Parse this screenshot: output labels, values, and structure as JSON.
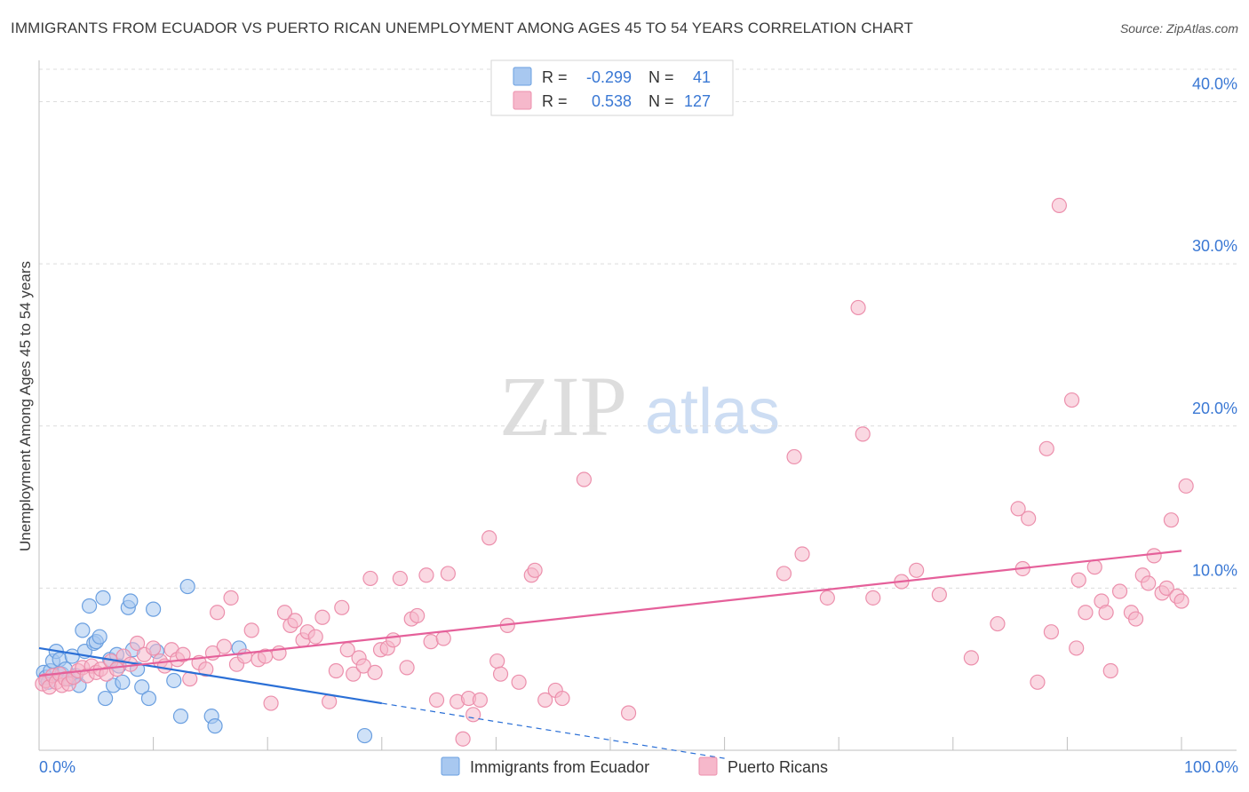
{
  "header": {
    "title": "IMMIGRANTS FROM ECUADOR VS PUERTO RICAN UNEMPLOYMENT AMONG AGES 45 TO 54 YEARS CORRELATION CHART",
    "source": "Source: ZipAtlas.com"
  },
  "watermark": {
    "zip": "ZIP",
    "atlas": "atlas"
  },
  "legend": {
    "series1": {
      "r_label": "R =",
      "r_value": "-0.299",
      "n_label": "N =",
      "n_value": "41"
    },
    "series2": {
      "r_label": "R =",
      "r_value": "0.538",
      "n_label": "N =",
      "n_value": "127"
    }
  },
  "colors": {
    "blue_fill": "#a8c8f0",
    "blue_stroke": "#6a9fe0",
    "blue_line": "#2a6fd6",
    "pink_fill": "#f6b8cb",
    "pink_stroke": "#ec8fac",
    "pink_line": "#e5609a",
    "value_text": "#3a78d4",
    "grid": "#dcdcdc"
  },
  "chart_data": {
    "type": "scatter",
    "title": "IMMIGRANTS FROM ECUADOR VS PUERTO RICAN UNEMPLOYMENT AMONG AGES 45 TO 54 YEARS CORRELATION CHART",
    "xlabel": "",
    "ylabel": "Unemployment Among Ages 45 to 54 years",
    "xlim": [
      0,
      100
    ],
    "ylim": [
      0,
      42
    ],
    "x_tick_labels": [
      "0.0%",
      "100.0%"
    ],
    "y_ticks": [
      10,
      20,
      30,
      40
    ],
    "y_tick_labels": [
      "10.0%",
      "20.0%",
      "30.0%",
      "40.0%"
    ],
    "grid": true,
    "series": [
      {
        "name": "Immigrants from Ecuador",
        "color": "blue",
        "trend": {
          "x0": 0,
          "y0": 6.3,
          "x1": 30,
          "y1": 2.9,
          "dash_to_x": 60,
          "dash_to_y": -0.5
        },
        "points": [
          [
            0.4,
            4.8
          ],
          [
            0.6,
            4.5
          ],
          [
            0.8,
            4.2
          ],
          [
            1.0,
            4.9
          ],
          [
            1.2,
            5.5
          ],
          [
            1.5,
            6.1
          ],
          [
            1.8,
            5.6
          ],
          [
            2.0,
            4.7
          ],
          [
            2.3,
            5.0
          ],
          [
            2.6,
            4.4
          ],
          [
            2.9,
            5.8
          ],
          [
            3.2,
            4.6
          ],
          [
            3.5,
            4.0
          ],
          [
            3.8,
            7.4
          ],
          [
            4.0,
            6.1
          ],
          [
            4.4,
            8.9
          ],
          [
            4.8,
            6.6
          ],
          [
            5.0,
            6.7
          ],
          [
            5.3,
            7.0
          ],
          [
            5.6,
            9.4
          ],
          [
            5.8,
            3.2
          ],
          [
            6.2,
            5.6
          ],
          [
            6.5,
            4.0
          ],
          [
            6.8,
            5.9
          ],
          [
            7.0,
            5.2
          ],
          [
            7.3,
            4.2
          ],
          [
            7.8,
            8.8
          ],
          [
            8.0,
            9.2
          ],
          [
            8.2,
            6.2
          ],
          [
            8.6,
            5.0
          ],
          [
            9.0,
            3.9
          ],
          [
            9.6,
            3.2
          ],
          [
            10.0,
            8.7
          ],
          [
            10.3,
            6.1
          ],
          [
            11.8,
            4.3
          ],
          [
            12.4,
            2.1
          ],
          [
            13.0,
            10.1
          ],
          [
            15.1,
            2.1
          ],
          [
            15.4,
            1.5
          ],
          [
            17.5,
            6.3
          ],
          [
            28.5,
            0.9
          ]
        ]
      },
      {
        "name": "Puerto Ricans",
        "color": "pink",
        "trend": {
          "x0": 0,
          "y0": 4.6,
          "x1": 100,
          "y1": 12.3
        },
        "points": [
          [
            0.3,
            4.1
          ],
          [
            0.6,
            4.3
          ],
          [
            0.9,
            3.9
          ],
          [
            1.2,
            4.6
          ],
          [
            1.5,
            4.2
          ],
          [
            1.8,
            4.7
          ],
          [
            2.0,
            4.0
          ],
          [
            2.3,
            4.4
          ],
          [
            2.6,
            4.1
          ],
          [
            3.0,
            4.5
          ],
          [
            3.4,
            4.9
          ],
          [
            3.8,
            5.1
          ],
          [
            4.2,
            4.6
          ],
          [
            4.6,
            5.2
          ],
          [
            5.0,
            4.8
          ],
          [
            5.4,
            5.0
          ],
          [
            5.9,
            4.7
          ],
          [
            6.3,
            5.5
          ],
          [
            6.8,
            5.0
          ],
          [
            7.4,
            5.8
          ],
          [
            8.0,
            5.3
          ],
          [
            8.6,
            6.6
          ],
          [
            9.2,
            5.9
          ],
          [
            10.0,
            6.3
          ],
          [
            10.6,
            5.5
          ],
          [
            11.0,
            5.2
          ],
          [
            11.6,
            6.2
          ],
          [
            12.1,
            5.6
          ],
          [
            12.6,
            5.9
          ],
          [
            13.2,
            4.4
          ],
          [
            14.0,
            5.4
          ],
          [
            14.6,
            5.0
          ],
          [
            15.2,
            6.0
          ],
          [
            15.6,
            8.5
          ],
          [
            16.2,
            6.4
          ],
          [
            16.8,
            9.4
          ],
          [
            17.3,
            5.3
          ],
          [
            18.0,
            5.8
          ],
          [
            18.6,
            7.4
          ],
          [
            19.2,
            5.6
          ],
          [
            19.8,
            5.8
          ],
          [
            20.3,
            2.9
          ],
          [
            21.0,
            6.0
          ],
          [
            21.5,
            8.5
          ],
          [
            22.0,
            7.7
          ],
          [
            22.4,
            8.0
          ],
          [
            23.1,
            6.8
          ],
          [
            23.5,
            7.3
          ],
          [
            24.2,
            7.0
          ],
          [
            24.8,
            8.2
          ],
          [
            25.4,
            3.0
          ],
          [
            26.0,
            4.9
          ],
          [
            26.5,
            8.8
          ],
          [
            27.0,
            6.2
          ],
          [
            27.5,
            4.7
          ],
          [
            28.0,
            5.7
          ],
          [
            28.4,
            5.2
          ],
          [
            29.0,
            10.6
          ],
          [
            29.4,
            4.8
          ],
          [
            29.9,
            6.2
          ],
          [
            30.5,
            6.3
          ],
          [
            31.0,
            6.8
          ],
          [
            31.6,
            10.6
          ],
          [
            32.2,
            5.1
          ],
          [
            32.6,
            8.1
          ],
          [
            33.1,
            8.3
          ],
          [
            33.9,
            10.8
          ],
          [
            34.3,
            6.7
          ],
          [
            34.8,
            3.1
          ],
          [
            35.4,
            6.9
          ],
          [
            35.8,
            10.9
          ],
          [
            36.6,
            3.0
          ],
          [
            37.1,
            0.7
          ],
          [
            37.6,
            3.2
          ],
          [
            38.0,
            2.2
          ],
          [
            38.6,
            3.1
          ],
          [
            39.4,
            13.1
          ],
          [
            40.1,
            5.5
          ],
          [
            40.4,
            4.7
          ],
          [
            41.0,
            7.7
          ],
          [
            42.0,
            4.2
          ],
          [
            43.1,
            10.8
          ],
          [
            43.4,
            11.1
          ],
          [
            44.3,
            3.1
          ],
          [
            45.2,
            3.7
          ],
          [
            45.8,
            3.2
          ],
          [
            47.7,
            16.7
          ],
          [
            51.6,
            2.3
          ],
          [
            65.2,
            10.9
          ],
          [
            66.1,
            18.1
          ],
          [
            66.8,
            12.1
          ],
          [
            69.0,
            9.4
          ],
          [
            71.7,
            27.3
          ],
          [
            72.1,
            19.5
          ],
          [
            73.0,
            9.4
          ],
          [
            75.5,
            10.4
          ],
          [
            76.8,
            11.1
          ],
          [
            78.8,
            9.6
          ],
          [
            81.6,
            5.7
          ],
          [
            83.9,
            7.8
          ],
          [
            85.7,
            14.9
          ],
          [
            86.1,
            11.2
          ],
          [
            86.6,
            14.3
          ],
          [
            87.4,
            4.2
          ],
          [
            88.2,
            18.6
          ],
          [
            88.6,
            7.3
          ],
          [
            89.3,
            33.6
          ],
          [
            90.4,
            21.6
          ],
          [
            90.8,
            6.3
          ],
          [
            91.0,
            10.5
          ],
          [
            91.6,
            8.5
          ],
          [
            92.4,
            11.3
          ],
          [
            93.0,
            9.2
          ],
          [
            93.4,
            8.5
          ],
          [
            93.8,
            4.9
          ],
          [
            94.6,
            9.8
          ],
          [
            95.6,
            8.5
          ],
          [
            96.0,
            8.1
          ],
          [
            96.6,
            10.8
          ],
          [
            97.1,
            10.3
          ],
          [
            97.6,
            12.0
          ],
          [
            98.3,
            9.7
          ],
          [
            98.7,
            10.0
          ],
          [
            99.1,
            14.2
          ],
          [
            99.6,
            9.5
          ],
          [
            100.0,
            9.2
          ],
          [
            100.4,
            16.3
          ]
        ]
      }
    ],
    "legend_position": "top-center",
    "bottom_legend": [
      "Immigrants from Ecuador",
      "Puerto Ricans"
    ]
  }
}
